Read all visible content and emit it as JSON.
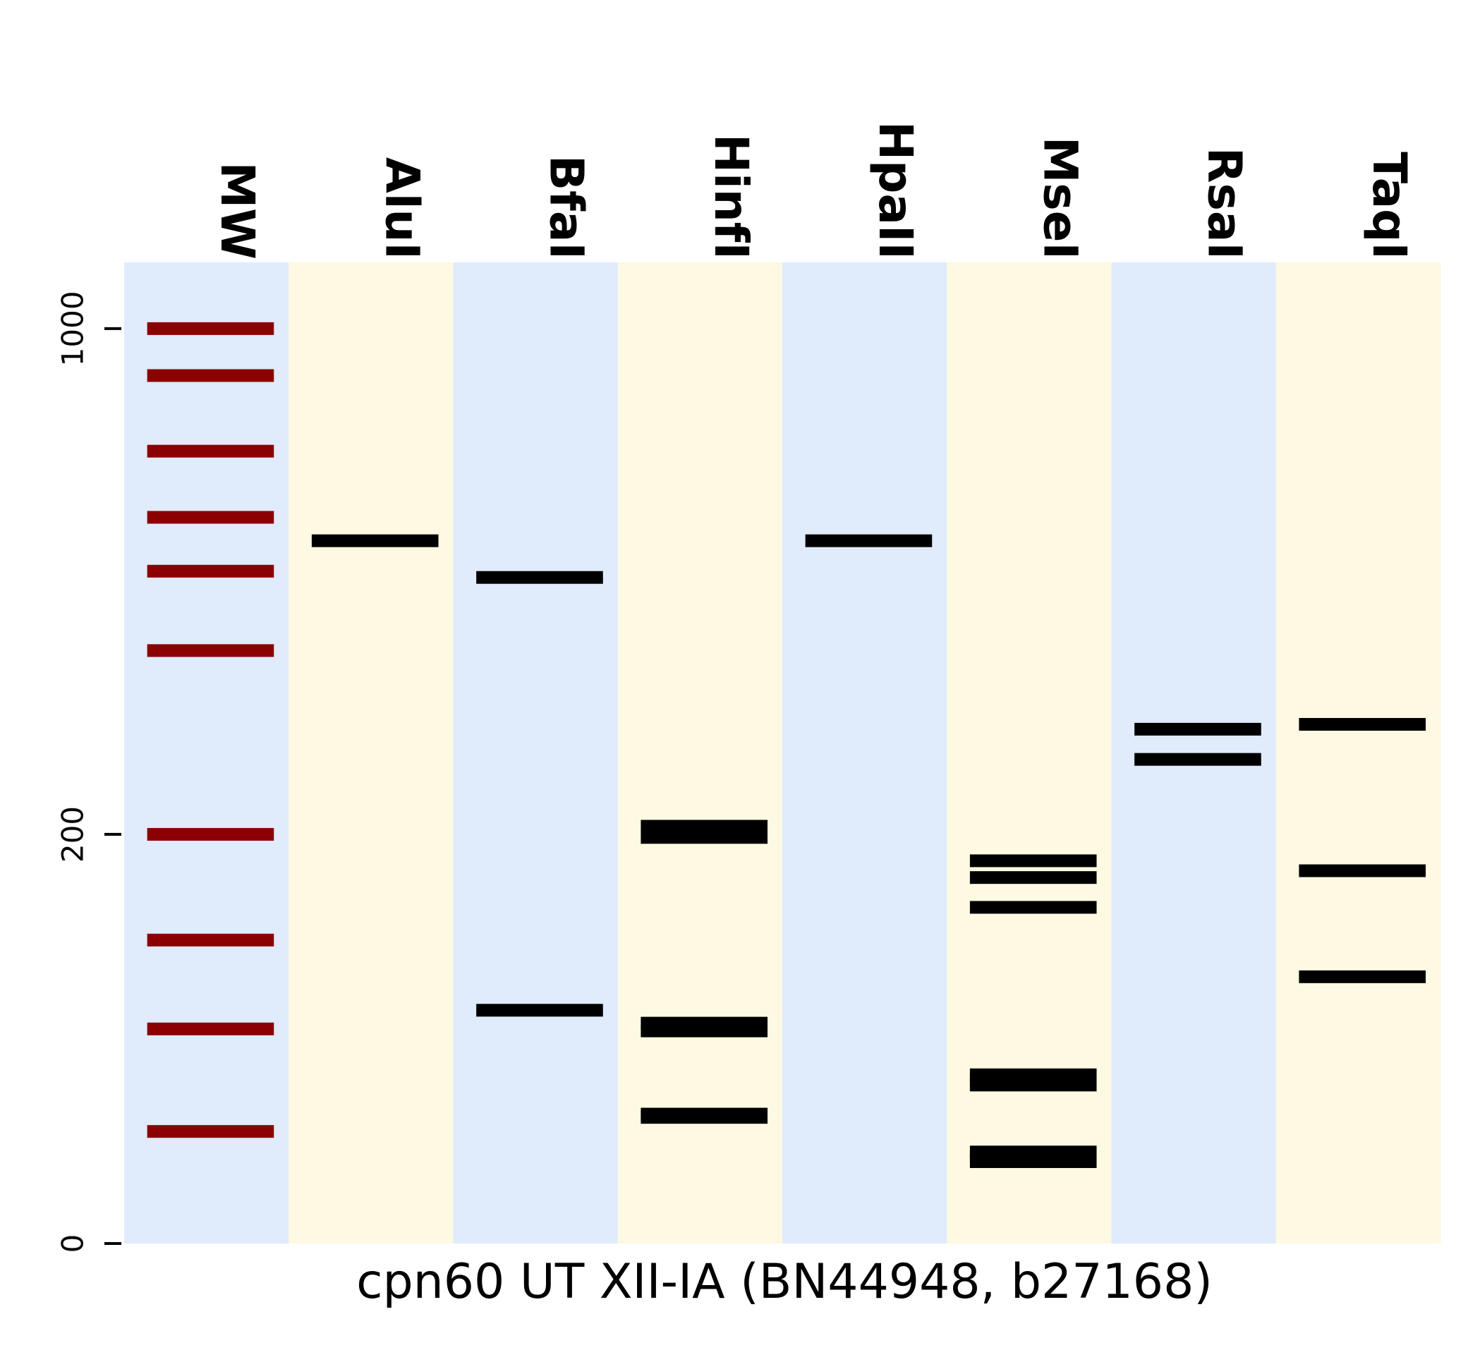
{
  "chart_data": {
    "type": "gel",
    "xlabel": "cpn60 UT XII-IA (BN44948, b27168)",
    "y_scale": "sqrt",
    "ylim": [
      0,
      1150
    ],
    "yticks": [
      0,
      200,
      1000
    ],
    "lane_colors": [
      "#e0ebfc",
      "#fdf9e2"
    ],
    "marker_color": "#8b0000",
    "band_color": "#000000",
    "lanes": [
      {
        "name": "MW",
        "marker": true,
        "bands": [
          1000,
          900,
          750,
          630,
          540,
          420,
          200,
          110,
          55,
          15
        ]
      },
      {
        "name": "AluI",
        "bands": [
          590
        ]
      },
      {
        "name": "BfaI",
        "bands": [
          530,
          65
        ]
      },
      {
        "name": "HinfI",
        "bands": [
          208,
          197,
          58,
          54,
          20,
          19
        ]
      },
      {
        "name": "HpaII",
        "bands": [
          590
        ]
      },
      {
        "name": "MseI",
        "bands": [
          175,
          160,
          135,
          34,
          32,
          30,
          10,
          9,
          8
        ]
      },
      {
        "name": "RsaI",
        "bands": [
          316,
          280
        ]
      },
      {
        "name": "TaqI",
        "bands": [
          322,
          166,
          85
        ]
      }
    ]
  }
}
